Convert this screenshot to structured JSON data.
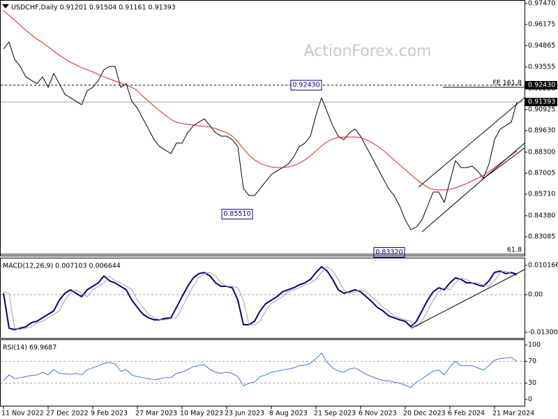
{
  "chart_data": [
    {
      "type": "line",
      "title": "USDCHF,Daily  0.91201 0.91504 0.91161 0.91393",
      "watermark": "ActionForex.com",
      "categories": [
        "11 Nov 2022",
        null,
        null,
        null,
        null,
        null,
        null,
        null,
        "27 Dec 2022",
        null,
        null,
        null,
        null,
        null,
        null,
        null,
        "9 Feb 2023",
        null,
        null,
        null,
        null,
        null,
        null,
        null,
        "27 Mar 2023",
        null,
        null,
        null,
        null,
        null,
        null,
        null,
        "10 May 2023",
        null,
        null,
        null,
        null,
        null,
        null,
        null,
        "23 Jun 2023",
        null,
        null,
        null,
        null,
        null,
        null,
        null,
        "8 Aug 2023",
        null,
        null,
        null,
        null,
        null,
        null,
        null,
        "21 Sep 2023",
        null,
        null,
        null,
        null,
        null,
        null,
        null,
        "6 Nov 2023",
        null,
        null,
        null,
        null,
        null,
        null,
        null,
        "20 Dec 2023",
        null,
        null,
        null,
        null,
        null,
        null,
        null,
        "6 Feb 2024",
        null,
        null,
        null,
        null,
        null,
        null,
        null,
        "21 Mar 2024",
        null,
        null,
        null,
        null
      ],
      "series": [
        {
          "name": "USDCHF",
          "color": "#000000",
          "values": [
            0.9467,
            0.951,
            0.9402,
            0.9359,
            0.9295,
            0.9273,
            0.9252,
            0.9295,
            0.923,
            0.9316,
            0.9252,
            0.9187,
            0.9166,
            0.9144,
            0.9123,
            0.9209,
            0.923,
            0.9273,
            0.9338,
            0.9359,
            0.9359,
            0.923,
            0.9252,
            0.9144,
            0.9101,
            0.9036,
            0.8972,
            0.8907,
            0.8864,
            0.8843,
            0.8821,
            0.8886,
            0.8886,
            0.895,
            0.8993,
            0.9015,
            0.9036,
            0.8993,
            0.895,
            0.8929,
            0.8929,
            0.8907,
            0.8864,
            0.8606,
            0.8563,
            0.8563,
            0.8606,
            0.8649,
            0.8692,
            0.8713,
            0.8735,
            0.8756,
            0.88,
            0.8864,
            0.8886,
            0.8929,
            0.9058,
            0.9166,
            0.9079,
            0.8993,
            0.8929,
            0.8907,
            0.895,
            0.8972,
            0.8929,
            0.8864,
            0.88,
            0.8735,
            0.867,
            0.8606,
            0.8563,
            0.8498,
            0.8412,
            0.8352,
            0.8369,
            0.8412,
            0.8498,
            0.8584,
            0.8584,
            0.852,
            0.8649,
            0.8778,
            0.8735,
            0.8735,
            0.8744,
            0.8713,
            0.867,
            0.8756,
            0.8907,
            0.8972,
            0.8993,
            0.9015,
            0.9139
          ]
        },
        {
          "name": "MA",
          "color": "#e0201b",
          "values": [
            0.9704,
            0.9674,
            0.9644,
            0.9613,
            0.9583,
            0.9553,
            0.9527,
            0.9506,
            0.948,
            0.9454,
            0.9428,
            0.9407,
            0.9385,
            0.9368,
            0.9351,
            0.9338,
            0.9325,
            0.9308,
            0.9295,
            0.9282,
            0.9269,
            0.9256,
            0.9243,
            0.923,
            0.9209,
            0.9174,
            0.9144,
            0.9114,
            0.9084,
            0.9058,
            0.9032,
            0.9015,
            0.9006,
            0.9002,
            0.8998,
            0.8993,
            0.8989,
            0.8985,
            0.8976,
            0.8963,
            0.895,
            0.8929,
            0.8894,
            0.8851,
            0.8812,
            0.8782,
            0.8761,
            0.8748,
            0.8739,
            0.8735,
            0.8735,
            0.8739,
            0.8748,
            0.8761,
            0.8782,
            0.8808,
            0.8838,
            0.8868,
            0.8894,
            0.8911,
            0.892,
            0.8924,
            0.8924,
            0.8924,
            0.892,
            0.8907,
            0.889,
            0.8868,
            0.8843,
            0.8812,
            0.8782,
            0.8752,
            0.8722,
            0.8692,
            0.8662,
            0.8636,
            0.8614,
            0.8601,
            0.8597,
            0.8597,
            0.8601,
            0.861,
            0.8623,
            0.8636,
            0.8653,
            0.867,
            0.8688,
            0.8709,
            0.8735,
            0.8761,
            0.8787,
            0.8812,
            0.8838
          ]
        }
      ],
      "ylim": [
        0.81922,
        0.976
      ],
      "yticks": [
        {
          "value": 0.9747,
          "label": "0.97470"
        },
        0.96175,
        0.94865,
        0.93555,
        {
          "value": 0.9222,
          "label": "0.92220"
        },
        0.90925,
        {
          "value": 0.8963,
          "label": "0.89630"
        },
        {
          "value": 0.883,
          "label": "0.88300"
        },
        0.87005,
        {
          "value": 0.8571,
          "label": "0.85710"
        },
        {
          "value": 0.8438,
          "label": "0.84380"
        },
        0.83085
      ],
      "grid": false,
      "levels": [
        {
          "value": 0.9243,
          "label": "0.92430",
          "style": "dashed"
        },
        {
          "value": 0.91393,
          "label": "0.91393",
          "style": "solid"
        }
      ],
      "annotations": [
        {
          "value": 0.9243,
          "label": "0.92430"
        },
        {
          "value": 0.8551,
          "label": "0.85510"
        },
        {
          "value": 0.8332,
          "label": "0.83320"
        }
      ],
      "fib_labels": [
        "FE 161.8",
        "61.8"
      ]
    },
    {
      "type": "line",
      "title": "MACD(12,26,9) 0.007103 0.006644",
      "series": [
        {
          "name": "MACD",
          "color": "#00007f",
          "values": [
            0.0005,
            -0.0116,
            -0.0121,
            -0.0116,
            -0.0111,
            -0.0097,
            -0.0092,
            -0.008,
            -0.0068,
            -0.0056,
            -0.0019,
            0.0005,
            0.0017,
            0.0005,
            -0.0007,
            0.0017,
            0.0029,
            0.0041,
            0.0065,
            0.0048,
            0.0041,
            0.0029,
            0.0017,
            -0.0019,
            -0.0044,
            -0.0068,
            -0.008,
            -0.0087,
            -0.0087,
            -0.0082,
            -0.008,
            -0.0044,
            -0.0007,
            0.0029,
            0.0058,
            0.0073,
            0.0077,
            0.0065,
            0.0041,
            0.0029,
            0.0029,
            0.0024,
            -0.0019,
            -0.0104,
            -0.0104,
            -0.0092,
            -0.0056,
            -0.0031,
            -0.0019,
            -0.0007,
            0.001,
            0.0017,
            0.0024,
            0.0034,
            0.0041,
            0.0053,
            0.0077,
            0.0097,
            0.0082,
            0.0053,
            0.0017,
            0.0005,
            0.001,
            0.0017,
            0.001,
            -0.0007,
            -0.0024,
            -0.0044,
            -0.0056,
            -0.0073,
            -0.008,
            -0.0087,
            -0.0092,
            -0.0111,
            -0.0092,
            -0.0056,
            -0.0019,
            0.001,
            0.0024,
            0.0017,
            0.0041,
            0.0058,
            0.0053,
            0.0041,
            0.0041,
            0.0034,
            0.0029,
            0.0048,
            0.0077,
            0.0082,
            0.0073,
            0.0077,
            0.0071
          ]
        },
        {
          "name": "Signal",
          "color": "#a0a0a0",
          "values": [
            0.001,
            0.0005,
            -0.0116,
            -0.0121,
            -0.0116,
            -0.0111,
            -0.0097,
            -0.0092,
            -0.008,
            -0.0068,
            -0.0056,
            -0.0019,
            0.0005,
            0.0017,
            0.0005,
            -0.0007,
            0.0017,
            0.0029,
            0.0041,
            0.0065,
            0.0048,
            0.0041,
            0.0029,
            0.0017,
            -0.0019,
            -0.0044,
            -0.0068,
            -0.008,
            -0.0087,
            -0.0087,
            -0.0082,
            -0.008,
            -0.0044,
            -0.0007,
            0.0029,
            0.0058,
            0.0073,
            0.0077,
            0.0065,
            0.0041,
            0.0029,
            0.0029,
            0.0024,
            -0.0019,
            -0.0104,
            -0.0104,
            -0.0092,
            -0.0056,
            -0.0031,
            -0.0019,
            -0.0007,
            0.001,
            0.0017,
            0.0024,
            0.0034,
            0.0041,
            0.0053,
            0.0077,
            0.0097,
            0.0082,
            0.0053,
            0.0017,
            0.0005,
            0.001,
            0.0017,
            0.001,
            -0.0007,
            -0.0024,
            -0.0044,
            -0.0056,
            -0.0073,
            -0.008,
            -0.0087,
            -0.0092,
            -0.0111,
            -0.0092,
            -0.0056,
            -0.0019,
            0.001,
            0.0024,
            0.0017,
            0.0041,
            0.0058,
            0.0053,
            0.0041,
            0.0041,
            0.0034,
            0.0029,
            0.0048,
            0.0077,
            0.0082,
            0.0073,
            0.0066
          ]
        }
      ],
      "ylim": [
        -0.015,
        0.01258
      ],
      "yticks": [
        0.010166,
        {
          "value": 0,
          "label": "0.00"
        },
        -0.013006
      ],
      "grid": true
    },
    {
      "type": "line",
      "title": "RSI(14) 69.9687",
      "series": [
        {
          "name": "RSI",
          "color": "#3c78d8",
          "values": [
            35,
            45,
            38,
            40,
            42,
            44,
            45,
            50,
            45,
            55,
            48,
            47,
            46,
            48,
            45,
            55,
            58,
            62,
            66,
            68,
            65,
            52,
            55,
            45,
            42,
            40,
            38,
            36,
            38,
            40,
            40,
            48,
            50,
            55,
            60,
            62,
            64,
            55,
            50,
            48,
            50,
            48,
            42,
            25,
            30,
            32,
            42,
            45,
            50,
            52,
            54,
            56,
            58,
            62,
            63,
            66,
            75,
            85,
            68,
            58,
            52,
            50,
            56,
            58,
            52,
            46,
            42,
            38,
            35,
            34,
            32,
            30,
            26,
            22,
            32,
            38,
            45,
            52,
            54,
            45,
            60,
            70,
            62,
            62,
            62,
            58,
            54,
            62,
            72,
            75,
            76,
            77,
            70
          ]
        }
      ],
      "ylim": [
        -12.8,
        109
      ],
      "yticks": [
        100,
        70,
        30,
        0
      ],
      "grid": true
    }
  ]
}
